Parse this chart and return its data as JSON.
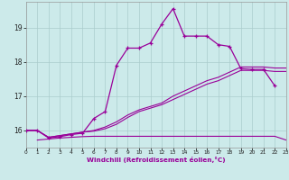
{
  "xlabel": "Windchill (Refroidissement éolien,°C)",
  "bg_color": "#cceaea",
  "grid_color": "#aacccc",
  "line_color": "#990099",
  "x_min": 0,
  "x_max": 23,
  "y_min": 15.5,
  "y_max": 19.75,
  "yticks": [
    16,
    17,
    18,
    19
  ],
  "xticks": [
    0,
    1,
    2,
    3,
    4,
    5,
    6,
    7,
    8,
    9,
    10,
    11,
    12,
    13,
    14,
    15,
    16,
    17,
    18,
    19,
    20,
    21,
    22,
    23
  ],
  "line1_x": [
    0,
    1,
    2,
    3,
    4,
    5,
    6,
    7,
    8,
    9,
    10,
    11,
    12,
    13,
    14,
    15,
    16,
    17,
    18,
    19,
    20,
    21,
    22
  ],
  "line1_y": [
    16.0,
    16.0,
    15.78,
    15.82,
    15.88,
    15.92,
    16.35,
    16.55,
    17.9,
    18.4,
    18.4,
    18.55,
    19.1,
    19.55,
    18.75,
    18.75,
    18.75,
    18.5,
    18.45,
    17.8,
    17.78,
    17.78,
    17.3
  ],
  "line2_x": [
    0,
    1,
    2,
    3,
    4,
    5,
    6,
    7,
    8,
    9,
    10,
    11,
    12,
    13,
    14,
    15,
    16,
    17,
    18,
    19,
    20,
    21,
    22,
    23
  ],
  "line2_y": [
    16.0,
    16.0,
    15.8,
    15.85,
    15.9,
    15.95,
    16.0,
    16.1,
    16.25,
    16.45,
    16.6,
    16.7,
    16.8,
    17.0,
    17.15,
    17.3,
    17.45,
    17.55,
    17.7,
    17.85,
    17.85,
    17.85,
    17.82,
    17.82
  ],
  "line3_x": [
    0,
    1,
    2,
    3,
    4,
    5,
    6,
    7,
    8,
    9,
    10,
    11,
    12,
    13,
    14,
    15,
    16,
    17,
    18,
    19,
    20,
    21,
    22,
    23
  ],
  "line3_y": [
    16.0,
    16.0,
    15.8,
    15.85,
    15.9,
    15.95,
    15.98,
    16.05,
    16.18,
    16.38,
    16.55,
    16.65,
    16.75,
    16.9,
    17.05,
    17.2,
    17.35,
    17.45,
    17.6,
    17.75,
    17.75,
    17.75,
    17.72,
    17.72
  ],
  "line4_x": [
    1,
    2,
    3,
    4,
    5,
    6,
    7,
    8,
    9,
    10,
    11,
    12,
    13,
    14,
    15,
    16,
    17,
    18,
    19,
    20,
    21,
    22,
    23
  ],
  "line4_y": [
    15.72,
    15.75,
    15.78,
    15.8,
    15.82,
    15.83,
    15.83,
    15.83,
    15.83,
    15.83,
    15.83,
    15.83,
    15.83,
    15.83,
    15.83,
    15.83,
    15.83,
    15.83,
    15.83,
    15.83,
    15.83,
    15.83,
    15.72
  ]
}
